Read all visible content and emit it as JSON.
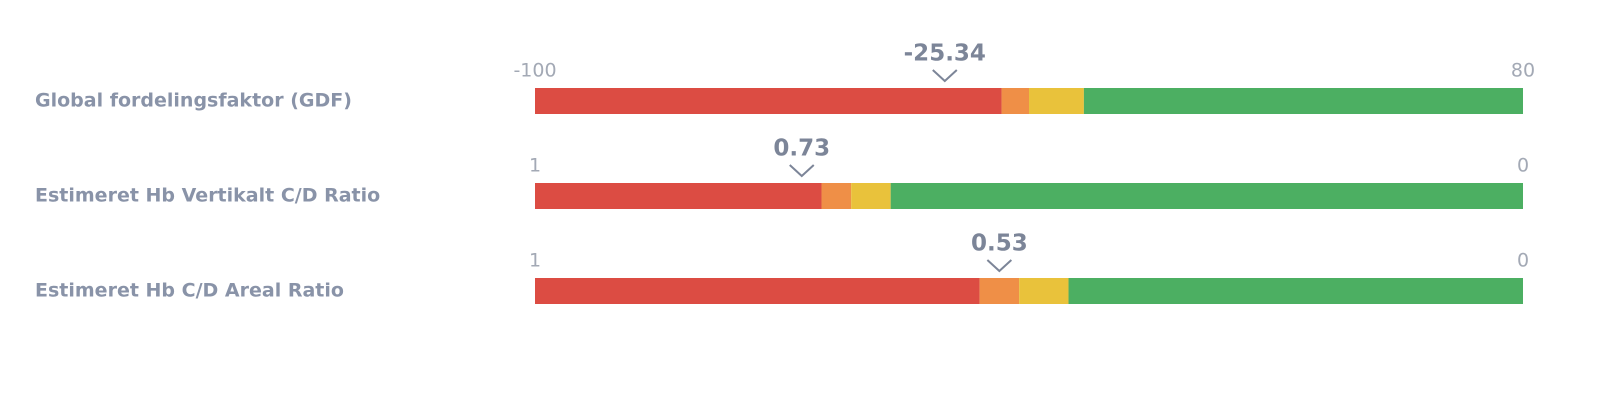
{
  "chart_data": [
    {
      "type": "gauge",
      "label": "Global fordelingsfaktor (GDF)",
      "value": -25.34,
      "xlim": [
        -100,
        80
      ],
      "xticks": [
        -100,
        80
      ],
      "thresholds": [
        -15,
        -10,
        0
      ],
      "colors": [
        "#dc4c43",
        "#ef8f47",
        "#e9c23b",
        "#4caf62"
      ]
    },
    {
      "type": "gauge",
      "label": "Estimeret Hb Vertikalt C/D Ratio",
      "value": 0.73,
      "xlim": [
        1,
        0
      ],
      "xticks": [
        1,
        0
      ],
      "thresholds": [
        0.71,
        0.68,
        0.64
      ],
      "colors": [
        "#dc4c43",
        "#ef8f47",
        "#e9c23b",
        "#4caf62"
      ]
    },
    {
      "type": "gauge",
      "label": "Estimeret Hb C/D Areal Ratio",
      "value": 0.53,
      "xlim": [
        1,
        0
      ],
      "xticks": [
        1,
        0
      ],
      "thresholds": [
        0.55,
        0.51,
        0.46
      ],
      "colors": [
        "#dc4c43",
        "#ef8f47",
        "#e9c23b",
        "#4caf62"
      ]
    }
  ]
}
